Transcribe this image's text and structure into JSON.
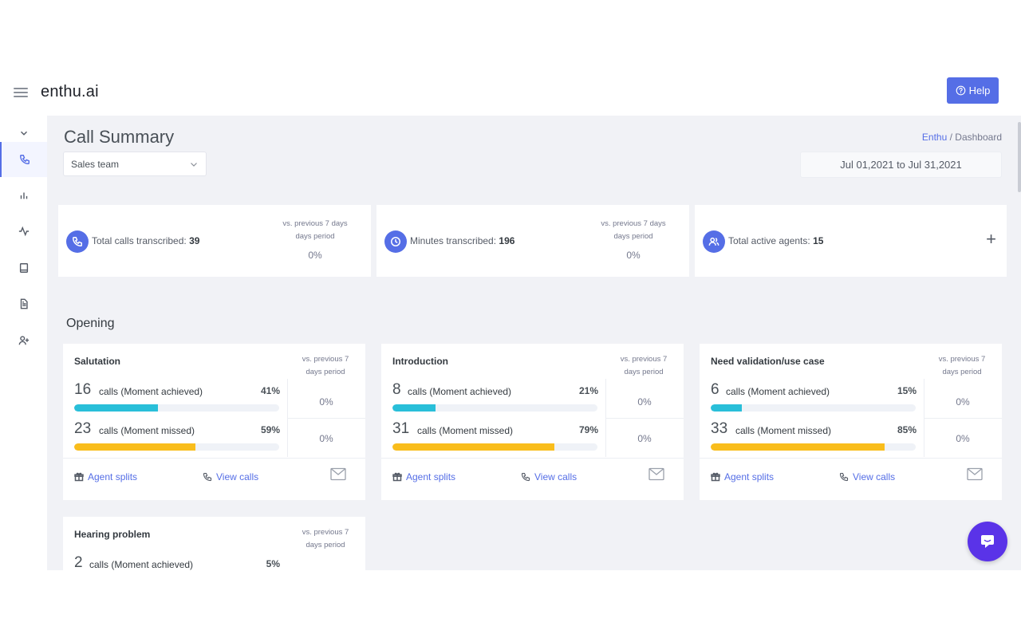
{
  "app": {
    "brand": "enthu.ai",
    "help_label": "Help"
  },
  "sidebar": {
    "items": [
      {
        "name": "sidebar-item-collapse",
        "icon": "chevron-down-icon"
      },
      {
        "name": "sidebar-item-calls",
        "icon": "phone-icon",
        "active": true
      },
      {
        "name": "sidebar-item-reports",
        "icon": "bar-chart-icon"
      },
      {
        "name": "sidebar-item-activity",
        "icon": "activity-icon"
      },
      {
        "name": "sidebar-item-library",
        "icon": "book-icon"
      },
      {
        "name": "sidebar-item-documents",
        "icon": "file-text-icon"
      },
      {
        "name": "sidebar-item-add-user",
        "icon": "user-plus-icon"
      }
    ]
  },
  "header": {
    "title": "Call Summary",
    "breadcrumb": {
      "root": "Enthu",
      "separator": "/",
      "current": "Dashboard"
    },
    "team_select": {
      "value": "Sales team"
    },
    "date_range": "Jul 01,2021 to Jul 31,2021"
  },
  "stats": [
    {
      "label": "Total calls transcribed:",
      "value": "39",
      "cmp_line1": "vs. previous 7 days",
      "cmp_line2": "days period",
      "pct": "0%",
      "icon": "phone-icon"
    },
    {
      "label": "Minutes transcribed:",
      "value": "196",
      "cmp_line1": "vs. previous 7 days",
      "cmp_line2": "days period",
      "pct": "0%",
      "icon": "clock-icon"
    },
    {
      "label": "Total active agents:",
      "value": "15",
      "icon": "users-icon",
      "action": "+"
    }
  ],
  "section": {
    "title": "Opening"
  },
  "moments": [
    {
      "title": "Salutation",
      "cmp_line1": "vs. previous 7",
      "cmp_line2": "days period",
      "achieved": {
        "count": "16",
        "text": "calls (Moment achieved)",
        "pct": "41%",
        "fill": 0.41,
        "cmp": "0%"
      },
      "missed": {
        "count": "23",
        "text": "calls (Moment missed)",
        "pct": "59%",
        "fill": 0.59,
        "cmp": "0%"
      },
      "agent_splits": "Agent splits",
      "view_calls": "View calls"
    },
    {
      "title": "Introduction",
      "cmp_line1": "vs. previous 7",
      "cmp_line2": "days period",
      "achieved": {
        "count": "8",
        "text": "calls (Moment achieved)",
        "pct": "21%",
        "fill": 0.21,
        "cmp": "0%"
      },
      "missed": {
        "count": "31",
        "text": "calls (Moment missed)",
        "pct": "79%",
        "fill": 0.79,
        "cmp": "0%"
      },
      "agent_splits": "Agent splits",
      "view_calls": "View calls"
    },
    {
      "title": "Need validation/use case",
      "cmp_line1": "vs. previous 7",
      "cmp_line2": "days period",
      "achieved": {
        "count": "6",
        "text": "calls (Moment achieved)",
        "pct": "15%",
        "fill": 0.15,
        "cmp": "0%"
      },
      "missed": {
        "count": "33",
        "text": "calls (Moment missed)",
        "pct": "85%",
        "fill": 0.85,
        "cmp": "0%"
      },
      "agent_splits": "Agent splits",
      "view_calls": "View calls"
    },
    {
      "title": "Hearing problem",
      "cmp_line1": "vs. previous 7",
      "cmp_line2": "days period",
      "achieved": {
        "count": "2",
        "text": "calls (Moment achieved)",
        "pct": "5%",
        "fill": 0.05
      }
    }
  ],
  "colors": {
    "accent": "#556ee6",
    "achieved_bar": "#29bfd9",
    "missed_bar": "#f9bd1c",
    "chat": "#5a33e8"
  }
}
